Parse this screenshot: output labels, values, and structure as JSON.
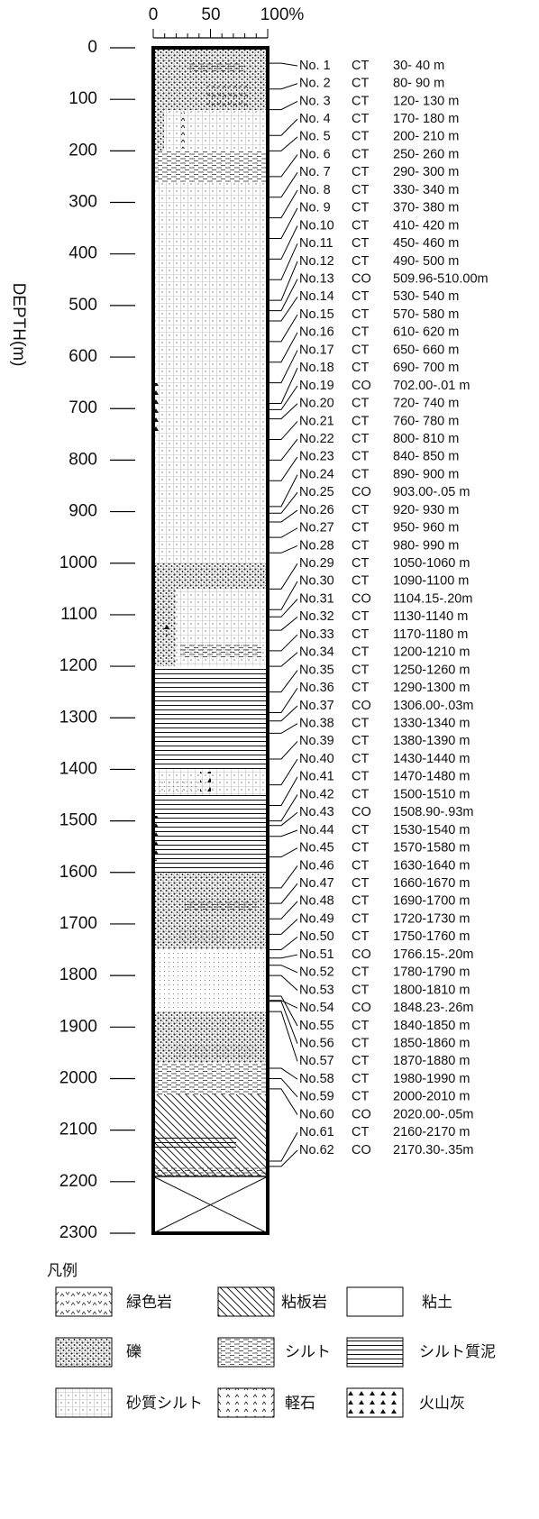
{
  "top_axis": {
    "labels": [
      "0",
      "50",
      "100%"
    ]
  },
  "depth_axis": {
    "label": "DEPTH(m)",
    "ticks": [
      0,
      100,
      200,
      300,
      400,
      500,
      600,
      700,
      800,
      900,
      1000,
      1100,
      1200,
      1300,
      1400,
      1500,
      1600,
      1700,
      1800,
      1900,
      2000,
      2100,
      2200,
      2300
    ]
  },
  "samples": [
    {
      "no": "No. 1",
      "type": "CT",
      "range": "30- 40 m"
    },
    {
      "no": "No. 2",
      "type": "CT",
      "range": "80- 90 m"
    },
    {
      "no": "No. 3",
      "type": "CT",
      "range": "120- 130 m"
    },
    {
      "no": "No. 4",
      "type": "CT",
      "range": "170- 180 m"
    },
    {
      "no": "No. 5",
      "type": "CT",
      "range": "200- 210 m"
    },
    {
      "no": "No. 6",
      "type": "CT",
      "range": "250- 260 m"
    },
    {
      "no": "No. 7",
      "type": "CT",
      "range": "290- 300 m"
    },
    {
      "no": "No. 8",
      "type": "CT",
      "range": "330- 340 m"
    },
    {
      "no": "No. 9",
      "type": "CT",
      "range": "370- 380 m"
    },
    {
      "no": "No.10",
      "type": "CT",
      "range": "410- 420 m"
    },
    {
      "no": "No.11",
      "type": "CT",
      "range": "450- 460 m"
    },
    {
      "no": "No.12",
      "type": "CT",
      "range": "490- 500 m"
    },
    {
      "no": "No.13",
      "type": "CO",
      "range": "509.96-510.00m"
    },
    {
      "no": "No.14",
      "type": "CT",
      "range": "530- 540 m"
    },
    {
      "no": "No.15",
      "type": "CT",
      "range": "570- 580 m"
    },
    {
      "no": "No.16",
      "type": "CT",
      "range": "610- 620 m"
    },
    {
      "no": "No.17",
      "type": "CT",
      "range": "650- 660 m"
    },
    {
      "no": "No.18",
      "type": "CT",
      "range": "690- 700 m"
    },
    {
      "no": "No.19",
      "type": "CO",
      "range": "702.00-.01 m"
    },
    {
      "no": "No.20",
      "type": "CT",
      "range": "720- 740 m"
    },
    {
      "no": "No.21",
      "type": "CT",
      "range": "760- 780 m"
    },
    {
      "no": "No.22",
      "type": "CT",
      "range": "800- 810 m"
    },
    {
      "no": "No.23",
      "type": "CT",
      "range": "840- 850 m"
    },
    {
      "no": "No.24",
      "type": "CT",
      "range": "890- 900 m"
    },
    {
      "no": "No.25",
      "type": "CO",
      "range": "903.00-.05 m"
    },
    {
      "no": "No.26",
      "type": "CT",
      "range": "920- 930 m"
    },
    {
      "no": "No.27",
      "type": "CT",
      "range": "950- 960 m"
    },
    {
      "no": "No.28",
      "type": "CT",
      "range": "980- 990 m"
    },
    {
      "no": "No.29",
      "type": "CT",
      "range": "1050-1060 m"
    },
    {
      "no": "No.30",
      "type": "CT",
      "range": "1090-1100 m"
    },
    {
      "no": "No.31",
      "type": "CO",
      "range": "1104.15-.20m"
    },
    {
      "no": "No.32",
      "type": "CT",
      "range": "1130-1140 m"
    },
    {
      "no": "No.33",
      "type": "CT",
      "range": "1170-1180 m"
    },
    {
      "no": "No.34",
      "type": "CT",
      "range": "1200-1210 m"
    },
    {
      "no": "No.35",
      "type": "CT",
      "range": "1250-1260 m"
    },
    {
      "no": "No.36",
      "type": "CT",
      "range": "1290-1300 m"
    },
    {
      "no": "No.37",
      "type": "CO",
      "range": "1306.00-.03m"
    },
    {
      "no": "No.38",
      "type": "CT",
      "range": "1330-1340 m"
    },
    {
      "no": "No.39",
      "type": "CT",
      "range": "1380-1390 m"
    },
    {
      "no": "No.40",
      "type": "CT",
      "range": "1430-1440 m"
    },
    {
      "no": "No.41",
      "type": "CT",
      "range": "1470-1480 m"
    },
    {
      "no": "No.42",
      "type": "CT",
      "range": "1500-1510 m"
    },
    {
      "no": "No.43",
      "type": "CO",
      "range": "1508.90-.93m"
    },
    {
      "no": "No.44",
      "type": "CT",
      "range": "1530-1540 m"
    },
    {
      "no": "No.45",
      "type": "CT",
      "range": "1570-1580 m"
    },
    {
      "no": "No.46",
      "type": "CT",
      "range": "1630-1640 m"
    },
    {
      "no": "No.47",
      "type": "CT",
      "range": "1660-1670 m"
    },
    {
      "no": "No.48",
      "type": "CT",
      "range": "1690-1700 m"
    },
    {
      "no": "No.49",
      "type": "CT",
      "range": "1720-1730 m"
    },
    {
      "no": "No.50",
      "type": "CT",
      "range": "1750-1760 m"
    },
    {
      "no": "No.51",
      "type": "CO",
      "range": "1766.15-.20m"
    },
    {
      "no": "No.52",
      "type": "CT",
      "range": "1780-1790 m"
    },
    {
      "no": "No.53",
      "type": "CT",
      "range": "1800-1810 m"
    },
    {
      "no": "No.54",
      "type": "CO",
      "range": "1848.23-.26m"
    },
    {
      "no": "No.55",
      "type": "CT",
      "range": "1840-1850 m"
    },
    {
      "no": "No.56",
      "type": "CT",
      "range": "1850-1860 m"
    },
    {
      "no": "No.57",
      "type": "CT",
      "range": "1870-1880 m"
    },
    {
      "no": "No.58",
      "type": "CT",
      "range": "1980-1990 m"
    },
    {
      "no": "No.59",
      "type": "CT",
      "range": "2000-2010 m"
    },
    {
      "no": "No.60",
      "type": "CO",
      "range": "2020.00-.05m"
    },
    {
      "no": "No.61",
      "type": "CT",
      "range": "2160-2170 m"
    },
    {
      "no": "No.62",
      "type": "CO",
      "range": "2170.30-.35m"
    }
  ],
  "legend": {
    "title": "凡例",
    "items": [
      "緑色岩",
      "粘板岩",
      "粘土",
      "礫",
      "シルト",
      "シルト質泥",
      "砂質シルト",
      "軽石",
      "火山灰"
    ]
  }
}
